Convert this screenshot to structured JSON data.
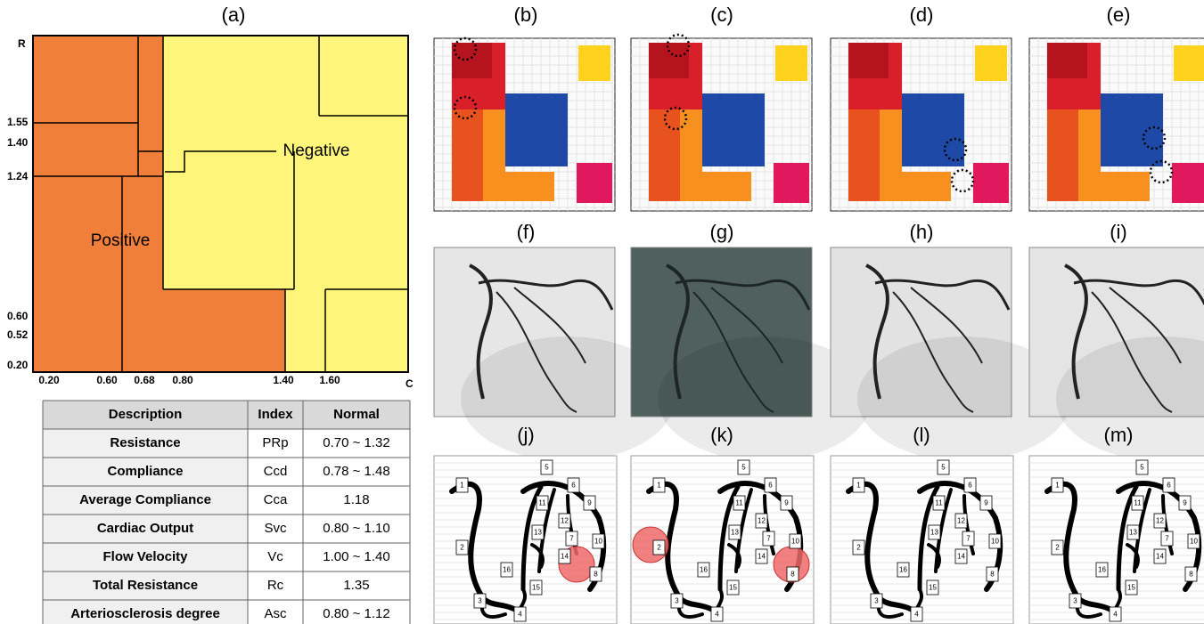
{
  "panel_labels": [
    "(a)",
    "(b)",
    "(c)",
    "(d)",
    "(e)",
    "(f)",
    "(g)",
    "(h)",
    "(i)",
    "(j)",
    "(k)",
    "(l)",
    "(m)"
  ],
  "zone_chart": {
    "y_axis_label": "R",
    "x_axis_label": "C",
    "yticks": [
      "1.55",
      "1.40",
      "1.24",
      "0.60",
      "0.52",
      "0.20"
    ],
    "xticks": [
      "0.20",
      "0.60",
      "0.68",
      "0.80",
      "1.40",
      "1.60"
    ],
    "regions": [
      "Positive",
      "Negative"
    ]
  },
  "table": {
    "columns": [
      "Description",
      "Index",
      "Normal"
    ],
    "rows": [
      [
        "Resistance",
        "PRp",
        "0.70 ~ 1.32"
      ],
      [
        "Compliance",
        "Ccd",
        "0.78 ~ 1.48"
      ],
      [
        "Average Compliance",
        "Cca",
        "1.18"
      ],
      [
        "Cardiac Output",
        "Svc",
        "0.80 ~ 1.10"
      ],
      [
        "Flow Velocity",
        "Vc",
        "1.00 ~ 1.40"
      ],
      [
        "Total Resistance",
        "Rc",
        "1.35"
      ],
      [
        "Arteriosclerosis degree",
        "Asc",
        "0.80 ~ 1.12"
      ]
    ]
  },
  "segment_labels": [
    "1",
    "2",
    "3",
    "4",
    "5",
    "6",
    "7",
    "8",
    "9",
    "10",
    "11",
    "12",
    "13",
    "14",
    "15",
    "16"
  ]
}
